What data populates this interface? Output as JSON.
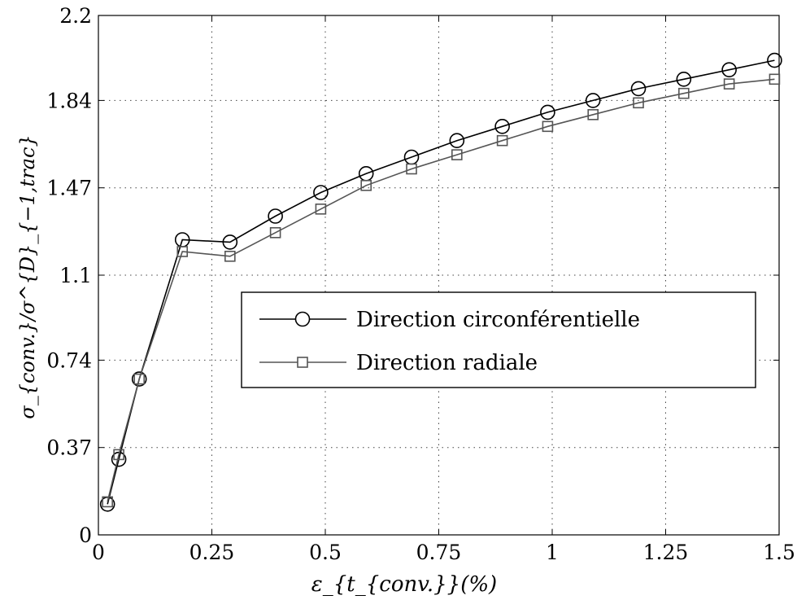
{
  "chart_data": {
    "type": "line",
    "xlabel": "ε_{t_{conv.}}(%)",
    "ylabel": "σ_{conv.}/σ^{D}_{−1,trac}",
    "xlim": [
      0,
      1.5
    ],
    "ylim": [
      0,
      2.2
    ],
    "x_ticks": [
      "0",
      "0.25",
      "0.5",
      "0.75",
      "1",
      "1.25",
      "1.5"
    ],
    "x_tick_values": [
      0,
      0.25,
      0.5,
      0.75,
      1,
      1.25,
      1.5
    ],
    "y_ticks": [
      "0",
      "0.37",
      "0.74",
      "1.1",
      "1.47",
      "1.84",
      "2.2"
    ],
    "y_tick_values": [
      0,
      0.37,
      0.74,
      1.1,
      1.47,
      1.84,
      2.2
    ],
    "grid": true,
    "legend_position": "center-right",
    "series": [
      {
        "name": "Direction circonférentielle",
        "marker": "circle",
        "color": "#000000",
        "x": [
          0.02,
          0.045,
          0.09,
          0.185,
          0.29,
          0.39,
          0.49,
          0.59,
          0.69,
          0.79,
          0.89,
          0.99,
          1.09,
          1.19,
          1.29,
          1.39,
          1.49
        ],
        "y": [
          0.13,
          0.32,
          0.66,
          1.25,
          1.24,
          1.35,
          1.45,
          1.53,
          1.6,
          1.67,
          1.73,
          1.79,
          1.84,
          1.89,
          1.93,
          1.97,
          2.01
        ]
      },
      {
        "name": "Direction radiale",
        "marker": "square",
        "color": "#555555",
        "x": [
          0.02,
          0.045,
          0.09,
          0.185,
          0.29,
          0.39,
          0.49,
          0.59,
          0.69,
          0.79,
          0.89,
          0.99,
          1.09,
          1.19,
          1.29,
          1.39,
          1.49
        ],
        "y": [
          0.14,
          0.34,
          0.66,
          1.2,
          1.18,
          1.28,
          1.38,
          1.48,
          1.55,
          1.61,
          1.67,
          1.73,
          1.78,
          1.83,
          1.87,
          1.91,
          1.93
        ]
      }
    ]
  }
}
